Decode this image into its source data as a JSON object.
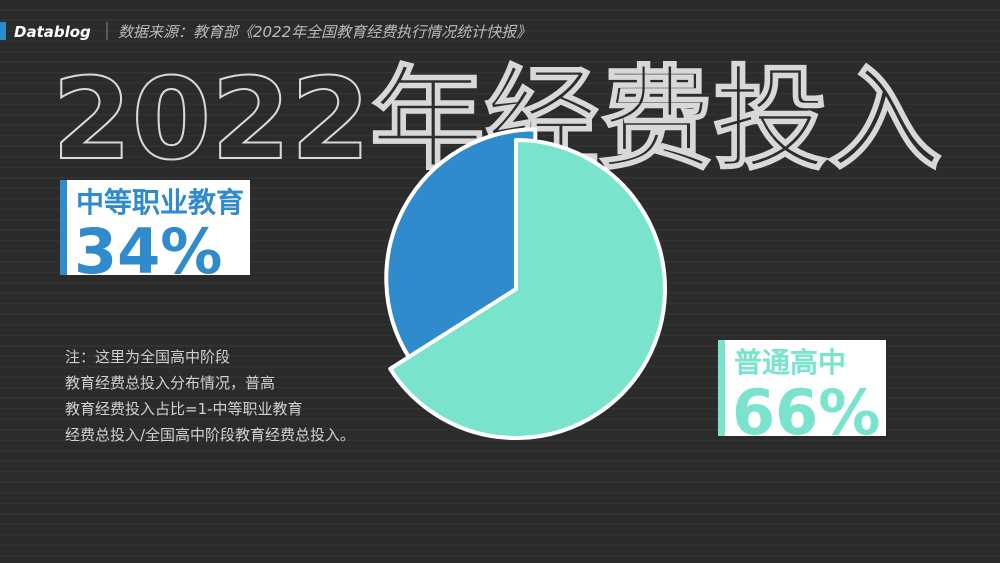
{
  "brand": "Datablog",
  "source": "数据来源：教育部《2022年全国教育经费执行情况统计快报》",
  "note": [
    "注：这里为全国高中阶段",
    "教育经费总投入分布情况，普高",
    "教育经费投入占比=1-中等职业教育",
    "经费总投入/全国高中阶段教育经费总投入。"
  ],
  "chart_data": {
    "type": "pie",
    "title": "2022年经费投入",
    "categories": [
      "中等职业教育",
      "普通高中"
    ],
    "values": [
      34,
      66
    ],
    "value_labels": [
      "34%",
      "66%"
    ],
    "colors": [
      "#2f8bcb",
      "#7ae3cd"
    ]
  }
}
